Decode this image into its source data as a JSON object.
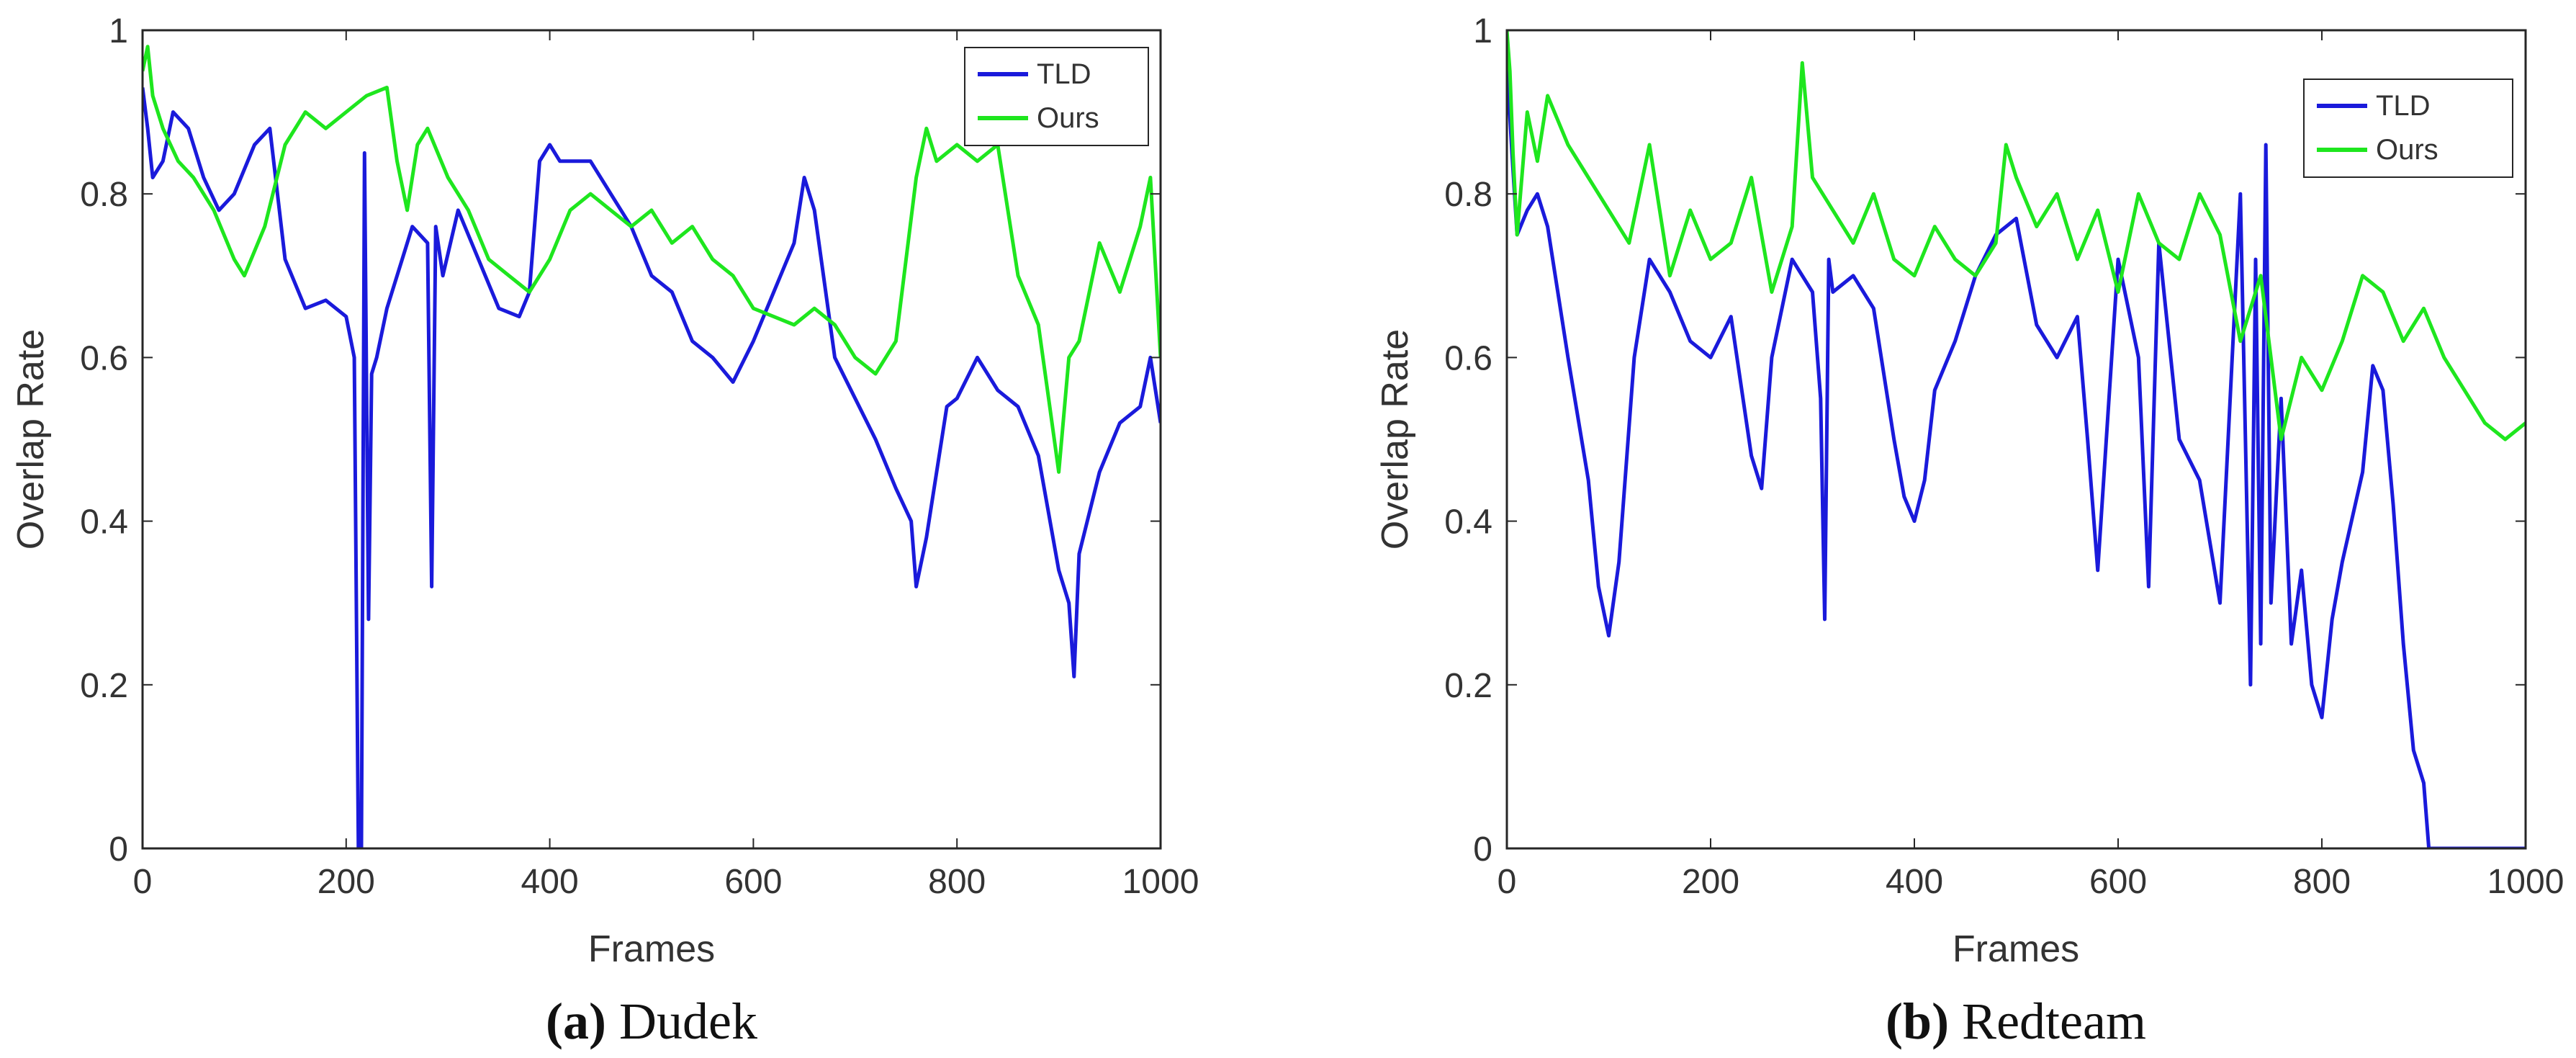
{
  "figure": {
    "panels": [
      {
        "caption": {
          "label": "(a)",
          "name": "Dudek"
        },
        "legend_placement": "top-right"
      },
      {
        "caption": {
          "label": "(b)",
          "name": "Redteam"
        },
        "legend_placement": "top-right"
      }
    ]
  },
  "colors": {
    "tld": "#1a1adb",
    "ours": "#1ee61e",
    "axis": "#262626"
  },
  "chart_data": [
    {
      "type": "line",
      "title": "",
      "xlabel": "Frames",
      "ylabel": "Overlap Rate",
      "xlim": [
        0,
        1000
      ],
      "ylim": [
        0,
        1
      ],
      "xticks": [
        "0",
        "200",
        "400",
        "600",
        "800",
        "1000"
      ],
      "yticks": [
        "0",
        "0.2",
        "0.4",
        "0.6",
        "0.8",
        "1"
      ],
      "grid": false,
      "legend": [
        "TLD",
        "Ours"
      ],
      "series": [
        {
          "name": "TLD",
          "color": "#1a1adb",
          "x": [
            0,
            5,
            10,
            20,
            30,
            45,
            60,
            75,
            90,
            110,
            125,
            140,
            160,
            180,
            200,
            208,
            212,
            215,
            218,
            222,
            225,
            230,
            240,
            255,
            265,
            280,
            284,
            288,
            295,
            310,
            330,
            350,
            370,
            380,
            390,
            400,
            410,
            420,
            440,
            460,
            480,
            500,
            520,
            540,
            560,
            580,
            600,
            620,
            640,
            650,
            660,
            680,
            700,
            720,
            740,
            755,
            760,
            770,
            790,
            800,
            820,
            840,
            860,
            880,
            900,
            910,
            915,
            920,
            940,
            960,
            980,
            990,
            1000
          ],
          "y": [
            0.93,
            0.88,
            0.82,
            0.84,
            0.9,
            0.88,
            0.82,
            0.78,
            0.8,
            0.86,
            0.88,
            0.72,
            0.66,
            0.67,
            0.65,
            0.6,
            0.0,
            0.0,
            0.85,
            0.28,
            0.58,
            0.6,
            0.66,
            0.72,
            0.76,
            0.74,
            0.32,
            0.76,
            0.7,
            0.78,
            0.72,
            0.66,
            0.65,
            0.68,
            0.84,
            0.86,
            0.84,
            0.84,
            0.84,
            0.8,
            0.76,
            0.7,
            0.68,
            0.62,
            0.6,
            0.57,
            0.62,
            0.68,
            0.74,
            0.82,
            0.78,
            0.6,
            0.55,
            0.5,
            0.44,
            0.4,
            0.32,
            0.38,
            0.54,
            0.55,
            0.6,
            0.56,
            0.54,
            0.48,
            0.34,
            0.3,
            0.21,
            0.36,
            0.46,
            0.52,
            0.54,
            0.6,
            0.52
          ]
        },
        {
          "name": "Ours",
          "color": "#1ee61e",
          "x": [
            0,
            5,
            10,
            20,
            35,
            50,
            70,
            90,
            100,
            120,
            140,
            160,
            180,
            200,
            220,
            240,
            250,
            260,
            270,
            280,
            300,
            320,
            340,
            360,
            380,
            400,
            420,
            440,
            460,
            480,
            500,
            520,
            540,
            560,
            580,
            600,
            620,
            640,
            660,
            680,
            700,
            720,
            740,
            760,
            770,
            780,
            800,
            820,
            840,
            860,
            880,
            890,
            900,
            910,
            920,
            940,
            960,
            980,
            990,
            1000
          ],
          "y": [
            0.95,
            0.98,
            0.92,
            0.88,
            0.84,
            0.82,
            0.78,
            0.72,
            0.7,
            0.76,
            0.86,
            0.9,
            0.88,
            0.9,
            0.92,
            0.93,
            0.84,
            0.78,
            0.86,
            0.88,
            0.82,
            0.78,
            0.72,
            0.7,
            0.68,
            0.72,
            0.78,
            0.8,
            0.78,
            0.76,
            0.78,
            0.74,
            0.76,
            0.72,
            0.7,
            0.66,
            0.65,
            0.64,
            0.66,
            0.64,
            0.6,
            0.58,
            0.62,
            0.82,
            0.88,
            0.84,
            0.86,
            0.84,
            0.86,
            0.7,
            0.64,
            0.55,
            0.46,
            0.6,
            0.62,
            0.74,
            0.68,
            0.76,
            0.82,
            0.6
          ]
        }
      ]
    },
    {
      "type": "line",
      "title": "",
      "xlabel": "Frames",
      "ylabel": "Overlap Rate",
      "xlim": [
        0,
        1000
      ],
      "ylim": [
        0,
        1
      ],
      "xticks": [
        "0",
        "200",
        "400",
        "600",
        "800",
        "1000"
      ],
      "yticks": [
        "0",
        "0.2",
        "0.4",
        "0.6",
        "0.8",
        "1"
      ],
      "grid": false,
      "legend": [
        "TLD",
        "Ours"
      ],
      "series": [
        {
          "name": "TLD",
          "color": "#1a1adb",
          "x": [
            0,
            5,
            10,
            20,
            30,
            40,
            60,
            80,
            90,
            100,
            110,
            125,
            140,
            160,
            180,
            200,
            220,
            240,
            250,
            260,
            280,
            300,
            308,
            312,
            316,
            320,
            340,
            360,
            380,
            390,
            400,
            410,
            420,
            440,
            460,
            480,
            500,
            520,
            540,
            560,
            570,
            580,
            600,
            620,
            630,
            640,
            660,
            680,
            700,
            720,
            730,
            735,
            740,
            745,
            750,
            760,
            770,
            780,
            790,
            800,
            810,
            820,
            840,
            850,
            860,
            870,
            880,
            890,
            900,
            905,
            920,
            950,
            1000
          ],
          "y": [
            0.96,
            0.85,
            0.75,
            0.78,
            0.8,
            0.76,
            0.6,
            0.45,
            0.32,
            0.26,
            0.35,
            0.6,
            0.72,
            0.68,
            0.62,
            0.6,
            0.65,
            0.48,
            0.44,
            0.6,
            0.72,
            0.68,
            0.55,
            0.28,
            0.72,
            0.68,
            0.7,
            0.66,
            0.5,
            0.43,
            0.4,
            0.45,
            0.56,
            0.62,
            0.7,
            0.75,
            0.77,
            0.64,
            0.6,
            0.65,
            0.5,
            0.34,
            0.72,
            0.6,
            0.32,
            0.74,
            0.5,
            0.45,
            0.3,
            0.8,
            0.2,
            0.72,
            0.25,
            0.86,
            0.3,
            0.55,
            0.25,
            0.34,
            0.2,
            0.16,
            0.28,
            0.35,
            0.46,
            0.59,
            0.56,
            0.42,
            0.25,
            0.12,
            0.08,
            0.0,
            0.0,
            0.0,
            0.0
          ]
        },
        {
          "name": "Ours",
          "color": "#1ee61e",
          "x": [
            0,
            3,
            6,
            10,
            20,
            30,
            40,
            60,
            80,
            100,
            120,
            140,
            160,
            180,
            200,
            220,
            240,
            260,
            280,
            290,
            300,
            320,
            340,
            360,
            380,
            400,
            420,
            440,
            460,
            480,
            490,
            500,
            520,
            540,
            560,
            580,
            600,
            620,
            640,
            660,
            680,
            700,
            720,
            740,
            760,
            780,
            800,
            820,
            840,
            860,
            880,
            900,
            920,
            940,
            960,
            980,
            1000
          ],
          "y": [
            1.0,
            0.95,
            0.85,
            0.75,
            0.9,
            0.84,
            0.92,
            0.86,
            0.82,
            0.78,
            0.74,
            0.86,
            0.7,
            0.78,
            0.72,
            0.74,
            0.82,
            0.68,
            0.76,
            0.96,
            0.82,
            0.78,
            0.74,
            0.8,
            0.72,
            0.7,
            0.76,
            0.72,
            0.7,
            0.74,
            0.86,
            0.82,
            0.76,
            0.8,
            0.72,
            0.78,
            0.68,
            0.8,
            0.74,
            0.72,
            0.8,
            0.75,
            0.62,
            0.7,
            0.5,
            0.6,
            0.56,
            0.62,
            0.7,
            0.68,
            0.62,
            0.66,
            0.6,
            0.56,
            0.52,
            0.5,
            0.52
          ]
        }
      ]
    }
  ]
}
